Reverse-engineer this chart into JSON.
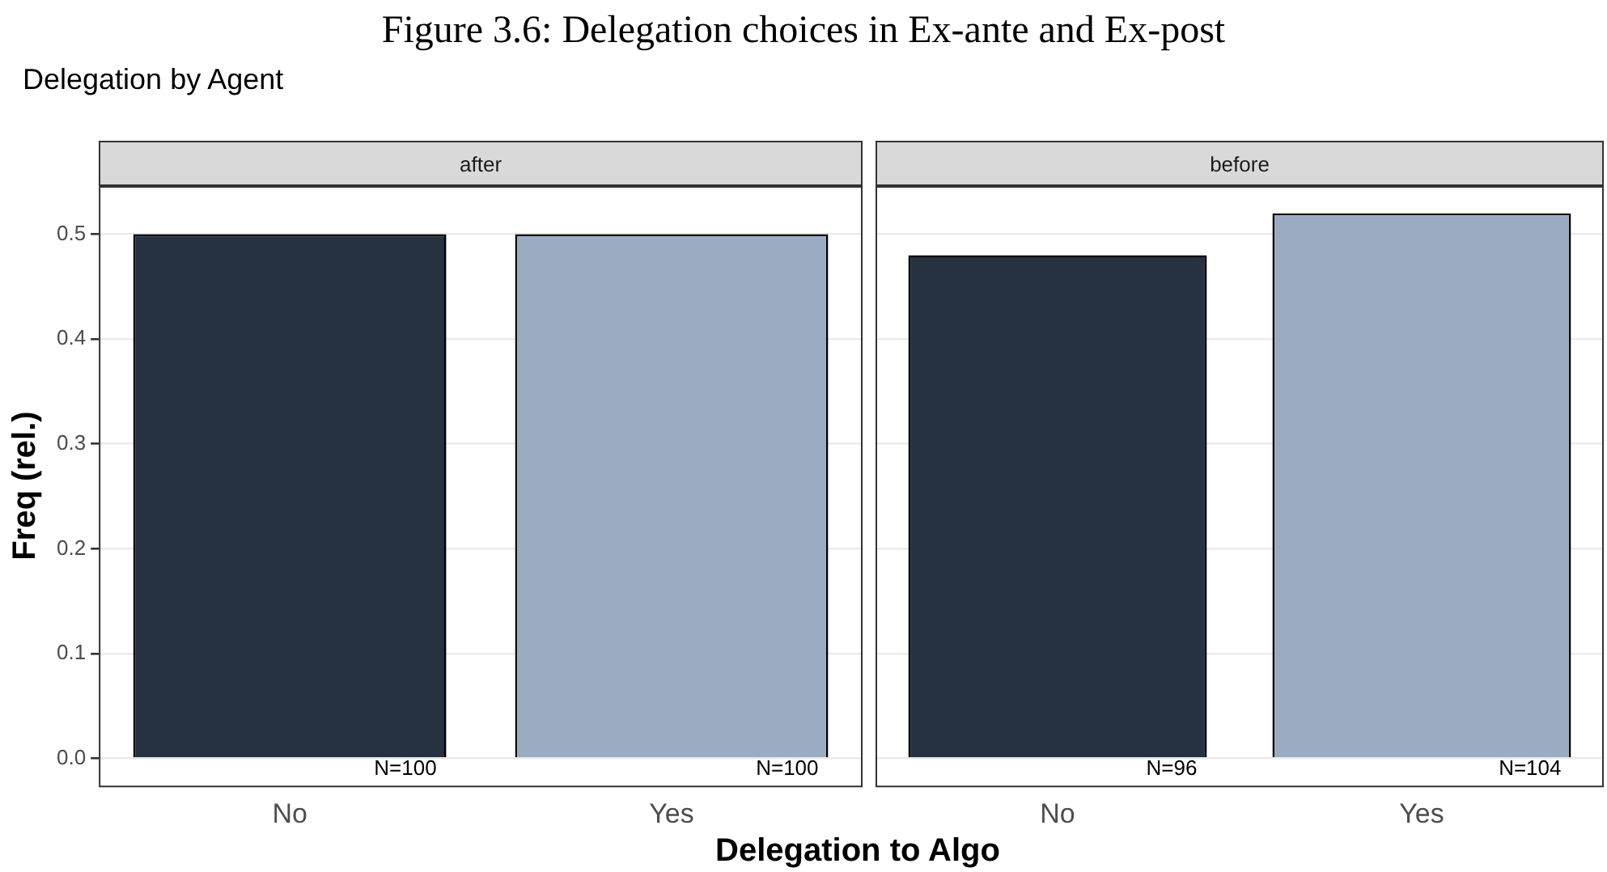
{
  "chart_data": [
    {
      "type": "bar",
      "title": "after",
      "xlabel": "Delegation to Algo",
      "ylabel": "Freq (rel.)",
      "categories": [
        "No",
        "Yes"
      ],
      "values": [
        0.5,
        0.5
      ],
      "colors": [
        "#263142",
        "#9babc2"
      ],
      "ylim": [
        -0.026,
        0.546
      ],
      "yticks": [
        {
          "value": 0,
          "label": "0.0"
        },
        0.1,
        0.2,
        0.3,
        0.4,
        0.5
      ],
      "grid": "y",
      "annotations": [
        "Figure 3.6: Delegation choices in Ex-ante and Ex-post",
        "Delegation by Agent",
        "N=100",
        "N=100"
      ]
    },
    {
      "type": "bar",
      "title": "before",
      "categories": [
        "No",
        "Yes"
      ],
      "values": [
        0.48,
        0.52
      ],
      "colors": [
        "#263142",
        "#9babc2"
      ],
      "ylim": [
        -0.026,
        0.546
      ],
      "yticks": [
        0,
        0.1,
        0.2,
        0.3,
        0.4,
        0.5
      ],
      "grid": "y",
      "tick_labels": "x",
      "annotations": [
        "N=96",
        "N=104"
      ]
    }
  ]
}
